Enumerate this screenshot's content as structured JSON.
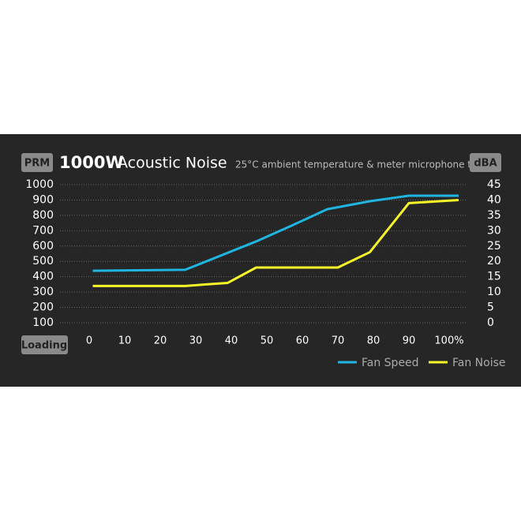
{
  "chart_data": {
    "type": "line",
    "badge": "PRM",
    "title_bold": "1000W",
    "title": "Acoustic Noise",
    "subtitle": "25°C ambient temperature & meter microphone test",
    "y2_label": "dBA",
    "x_label": "Loading",
    "xlim": [
      0,
      100
    ],
    "xticks": [
      0,
      10,
      20,
      30,
      40,
      50,
      60,
      70,
      80,
      90,
      {
        "value": 100,
        "label": "100%"
      }
    ],
    "ylim": [
      100,
      1000
    ],
    "yticks": [
      1000,
      900,
      800,
      700,
      600,
      500,
      400,
      300,
      200,
      100
    ],
    "y2lim": [
      0,
      45
    ],
    "y2ticks": [
      45,
      40,
      35,
      30,
      25,
      20,
      15,
      10,
      5,
      0
    ],
    "grid": true,
    "series": [
      {
        "name": "Fan Speed",
        "color": "#1fb5e0",
        "x": [
          1,
          27,
          47,
          57,
          67,
          79,
          90,
          104
        ],
        "values": [
          439,
          445,
          630,
          733,
          840,
          892,
          928,
          928
        ]
      },
      {
        "name": "Fan Noise",
        "color": "#f5f52a",
        "axis": "y2",
        "x": [
          1,
          27,
          39,
          47,
          57,
          70,
          79,
          90,
          104
        ],
        "values": [
          12,
          12,
          13,
          18,
          18,
          18,
          23,
          39,
          40
        ]
      }
    ]
  }
}
